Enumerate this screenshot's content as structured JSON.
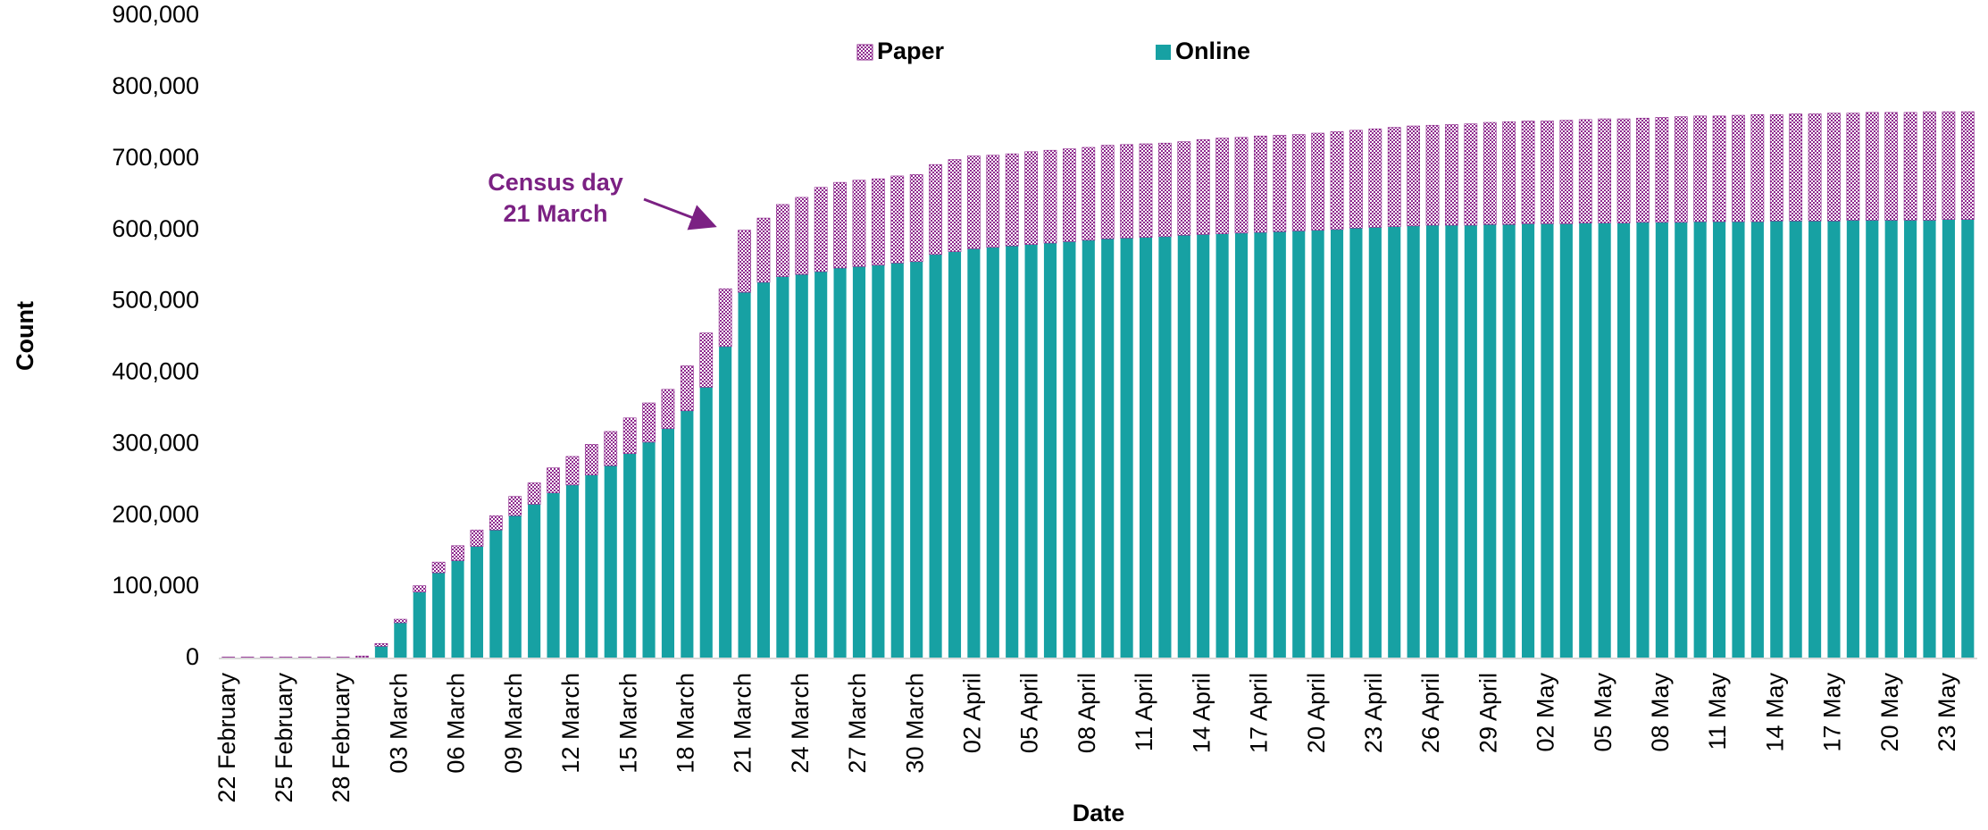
{
  "chart_data": {
    "type": "stacked-bar",
    "x_label": "Date",
    "y_label": "Count",
    "annotation": [
      "Census day",
      "21 March"
    ],
    "categories": [
      "22 February",
      null,
      null,
      "25 February",
      null,
      null,
      "28 February",
      null,
      null,
      "03 March",
      null,
      null,
      "06 March",
      null,
      null,
      "09 March",
      null,
      null,
      "12 March",
      null,
      null,
      "15 March",
      null,
      null,
      "18 March",
      null,
      null,
      "21 March",
      null,
      null,
      "24 March",
      null,
      null,
      "27 March",
      null,
      null,
      "30 March",
      null,
      null,
      "02 April",
      null,
      null,
      "05 April",
      null,
      null,
      "08 April",
      null,
      null,
      "11 April",
      null,
      null,
      "14 April",
      null,
      null,
      "17 April",
      null,
      null,
      "20 April",
      null,
      null,
      "23 April",
      null,
      null,
      "26 April",
      null,
      null,
      "29 April",
      null,
      null,
      "02 May",
      null,
      null,
      "05 May",
      null,
      null,
      "08 May",
      null,
      null,
      "11 May",
      null,
      null,
      "14 May",
      null,
      null,
      "17 May",
      null,
      null,
      "20 May",
      null,
      null,
      "23 May",
      null
    ],
    "series": [
      {
        "name": "Online",
        "color": "#17a1a3",
        "values": [
          1500,
          1500,
          1500,
          1500,
          1500,
          1500,
          1500,
          1500,
          17000,
          50000,
          93000,
          120000,
          137000,
          157000,
          180000,
          200000,
          216000,
          232000,
          243000,
          257000,
          270000,
          287000,
          303000,
          322000,
          347000,
          380000,
          437000,
          513000,
          527000,
          535000,
          538000,
          542000,
          547000,
          549000,
          551000,
          554000,
          556000,
          566000,
          570000,
          574000,
          576000,
          578000,
          580000,
          582000,
          584000,
          586000,
          588000,
          589000,
          590000,
          591000,
          593000,
          594000,
          595000,
          596000,
          597000,
          598000,
          599000,
          600000,
          601000,
          603000,
          604000,
          605000,
          606000,
          607000,
          607000,
          607000,
          608000,
          608000,
          609000,
          609000,
          609000,
          610000,
          610000,
          610000,
          611000,
          611000,
          611000,
          612000,
          612000,
          612000,
          612000,
          613000,
          613000,
          613000,
          613000,
          614000,
          614000,
          614000,
          614000,
          614000,
          615000,
          615000
        ]
      },
      {
        "name": "Paper",
        "color": "#8e2a8e",
        "values": [
          500,
          500,
          500,
          500,
          500,
          500,
          500,
          2000,
          4000,
          5000,
          9000,
          15000,
          21000,
          23000,
          20000,
          27000,
          30000,
          35000,
          40000,
          43000,
          48000,
          50000,
          55000,
          55000,
          63000,
          76000,
          81000,
          87000,
          90000,
          101000,
          108000,
          118000,
          120000,
          121000,
          121000,
          122000,
          122000,
          126000,
          129000,
          130000,
          129000,
          129000,
          130000,
          130000,
          130000,
          130000,
          131000,
          131000,
          131000,
          131000,
          131000,
          133000,
          134000,
          134000,
          135000,
          135000,
          135000,
          136000,
          137000,
          137000,
          138000,
          139000,
          140000,
          140000,
          141000,
          142000,
          143000,
          144000,
          144000,
          144000,
          145000,
          145000,
          146000,
          146000,
          146000,
          147000,
          148000,
          148000,
          148000,
          149000,
          150000,
          149000,
          150000,
          150000,
          151000,
          150000,
          151000,
          151000,
          151000,
          152000,
          151000,
          151000
        ]
      }
    ],
    "ylim": [
      0,
      900000
    ],
    "yticks": [
      0,
      {
        "value": 100000,
        "label": "100,000"
      },
      {
        "value": 200000,
        "label": "200,000"
      },
      {
        "value": 300000,
        "label": "300,000"
      },
      {
        "value": 400000,
        "label": "400,000"
      },
      {
        "value": 500000,
        "label": "500,000"
      },
      {
        "value": 600000,
        "label": "600,000"
      },
      {
        "value": 700000,
        "label": "700,000"
      },
      {
        "value": 800000,
        "label": "800,000"
      },
      {
        "value": 900000,
        "label": "900,000"
      }
    ],
    "grid": false
  }
}
